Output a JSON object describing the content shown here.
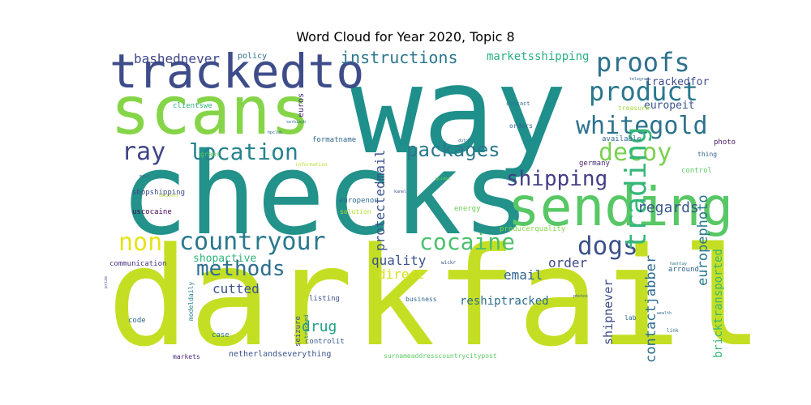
{
  "chart_data": {
    "type": "wordcloud",
    "title": "Word Cloud for Year 2020, Topic 8",
    "colormap": "viridis",
    "words": [
      {
        "text": "way",
        "weight": 100,
        "color": "#1f8f8b"
      },
      {
        "text": "checks",
        "weight": 93,
        "color": "#22928a"
      },
      {
        "text": "darkfail",
        "weight": 100,
        "color": "#c4df23"
      },
      {
        "text": "scans",
        "weight": 58,
        "color": "#86d549"
      },
      {
        "text": "trackedto",
        "weight": 38,
        "color": "#3e4c8a"
      },
      {
        "text": "sending",
        "weight": 44,
        "color": "#58c765"
      },
      {
        "text": "proofs",
        "weight": 22,
        "color": "#2d718e"
      },
      {
        "text": "product",
        "weight": 22,
        "color": "#2a778e"
      },
      {
        "text": "whitegold",
        "weight": 20,
        "color": "#2c728e"
      },
      {
        "text": "decoy",
        "weight": 20,
        "color": "#7ad151"
      },
      {
        "text": "location",
        "weight": 19,
        "color": "#26828e"
      },
      {
        "text": "ray",
        "weight": 20,
        "color": "#404588"
      },
      {
        "text": "packages",
        "weight": 17,
        "color": "#2a788e"
      },
      {
        "text": "shipping",
        "weight": 18,
        "color": "#433e85"
      },
      {
        "text": "countryour",
        "weight": 21,
        "color": "#29788e"
      },
      {
        "text": "non",
        "weight": 21,
        "color": "#e5e419"
      },
      {
        "text": "cocaine",
        "weight": 19,
        "color": "#4ac16d"
      },
      {
        "text": "dogs",
        "weight": 21,
        "color": "#3b518b"
      },
      {
        "text": "trading",
        "weight": 24,
        "color": "#35b779"
      },
      {
        "text": "methods",
        "weight": 17,
        "color": "#2e6f8e"
      },
      {
        "text": "instructions",
        "weight": 13,
        "color": "#2a768e"
      },
      {
        "text": "bashednever",
        "weight": 11,
        "color": "#3f4788"
      },
      {
        "text": "marketsshipping",
        "weight": 10,
        "color": "#2ab07f"
      },
      {
        "text": "regards",
        "weight": 12,
        "color": "#38588c"
      },
      {
        "text": "protectedmail",
        "weight": 11,
        "color": "#3b528b"
      },
      {
        "text": "contactjabber",
        "weight": 12,
        "color": "#2e6e8e"
      },
      {
        "text": "europephoto",
        "weight": 12,
        "color": "#2a788e"
      },
      {
        "text": "quality",
        "weight": 11,
        "color": "#3b518b"
      },
      {
        "text": "order",
        "weight": 11,
        "color": "#3e4a89"
      },
      {
        "text": "email",
        "weight": 11,
        "color": "#33638d"
      },
      {
        "text": "direct",
        "weight": 11,
        "color": "#d8e219"
      },
      {
        "text": "drug",
        "weight": 12,
        "color": "#20a386"
      },
      {
        "text": "cutted",
        "weight": 11,
        "color": "#3b528b"
      },
      {
        "text": "shopactive",
        "weight": 10,
        "color": "#2eb37c"
      },
      {
        "text": "reshiptracked",
        "weight": 10,
        "color": "#2e6d8e"
      },
      {
        "text": "shipnever",
        "weight": 10,
        "color": "#3e4c8a"
      },
      {
        "text": "bricktransported",
        "weight": 10,
        "color": "#37b878"
      },
      {
        "text": "trackedfor",
        "weight": 9,
        "color": "#3d4e8a"
      },
      {
        "text": "europeit",
        "weight": 9,
        "color": "#3b528b"
      },
      {
        "text": "treasure",
        "weight": 6,
        "color": "#9fda3a"
      },
      {
        "text": "policy",
        "weight": 7,
        "color": "#31688e"
      },
      {
        "text": "available",
        "weight": 6,
        "color": "#30698e"
      },
      {
        "text": "orders",
        "weight": 6,
        "color": "#33628d"
      },
      {
        "text": "contact",
        "weight": 5,
        "color": "#2c718e"
      },
      {
        "text": "euros",
        "weight": 6,
        "color": "#482475"
      },
      {
        "text": "clientswe",
        "weight": 6,
        "color": "#2db27d"
      },
      {
        "text": "grams",
        "weight": 5,
        "color": "#5ec962"
      },
      {
        "text": "formatname",
        "weight": 6,
        "color": "#31688e"
      },
      {
        "text": "germany",
        "weight": 6,
        "color": "#482878"
      },
      {
        "text": "thing",
        "weight": 5,
        "color": "#32648e"
      },
      {
        "text": "photo",
        "weight": 6,
        "color": "#481a6c"
      },
      {
        "text": "control",
        "weight": 6,
        "color": "#5ec962"
      },
      {
        "text": "shopshipping",
        "weight": 6,
        "color": "#3e4a89"
      },
      {
        "text": "uscocaine",
        "weight": 6,
        "color": "#440154"
      },
      {
        "text": "europenon",
        "weight": 6,
        "color": "#31688e"
      },
      {
        "text": "solution",
        "weight": 5,
        "color": "#b5de2b"
      },
      {
        "text": "energy",
        "weight": 6,
        "color": "#6ece58"
      },
      {
        "text": "producerquality",
        "weight": 6,
        "color": "#86d549"
      },
      {
        "text": "communication",
        "weight": 6,
        "color": "#46327e"
      },
      {
        "text": "arround",
        "weight": 6,
        "color": "#33638d"
      },
      {
        "text": "business",
        "weight": 5,
        "color": "#31688e"
      },
      {
        "text": "listing",
        "weight": 6,
        "color": "#3b528b"
      },
      {
        "text": "code",
        "weight": 6,
        "color": "#31688e"
      },
      {
        "text": "modeldaily",
        "weight": 5,
        "color": "#26828e"
      },
      {
        "text": "seizure",
        "weight": 6,
        "color": "#3e4a89"
      },
      {
        "text": "tracked",
        "weight": 5,
        "color": "#26828e"
      },
      {
        "text": "controlit",
        "weight": 6,
        "color": "#365c8d"
      },
      {
        "text": "case",
        "weight": 6,
        "color": "#2c728e"
      },
      {
        "text": "markets",
        "weight": 5,
        "color": "#482878"
      },
      {
        "text": "netherlandseverything",
        "weight": 7,
        "color": "#3b528b"
      },
      {
        "text": "surnameaddresscountrycitypost",
        "weight": 5,
        "color": "#5ec962"
      },
      {
        "text": "lab",
        "weight": 5,
        "color": "#31688e"
      },
      {
        "text": "link",
        "weight": 4,
        "color": "#2c728e"
      },
      {
        "text": "information",
        "weight": 4,
        "color": "#b5de2b"
      },
      {
        "text": "kanel",
        "weight": 4,
        "color": "#3b528b"
      },
      {
        "text": "dutch",
        "weight": 4,
        "color": "#31688e"
      },
      {
        "text": "guides",
        "weight": 3,
        "color": "#6ece58"
      },
      {
        "text": "wickr",
        "weight": 4,
        "color": "#3e4a89"
      },
      {
        "text": "hpclub",
        "weight": 3,
        "color": "#31688e"
      },
      {
        "text": "serbiayb",
        "weight": 3,
        "color": "#2c728e"
      },
      {
        "text": "mail",
        "weight": 3,
        "color": "#31688e"
      },
      {
        "text": "delivery",
        "weight": 3,
        "color": "#b5de2b"
      },
      {
        "text": "photos",
        "weight": 3,
        "color": "#3b528b"
      },
      {
        "text": "telegram",
        "weight": 3,
        "color": "#31688e"
      },
      {
        "text": "hashlay",
        "weight": 3,
        "color": "#2c728e"
      },
      {
        "text": "prize",
        "weight": 3,
        "color": "#3b528b"
      },
      {
        "text": "wealth",
        "weight": 3,
        "color": "#31688e"
      }
    ]
  }
}
